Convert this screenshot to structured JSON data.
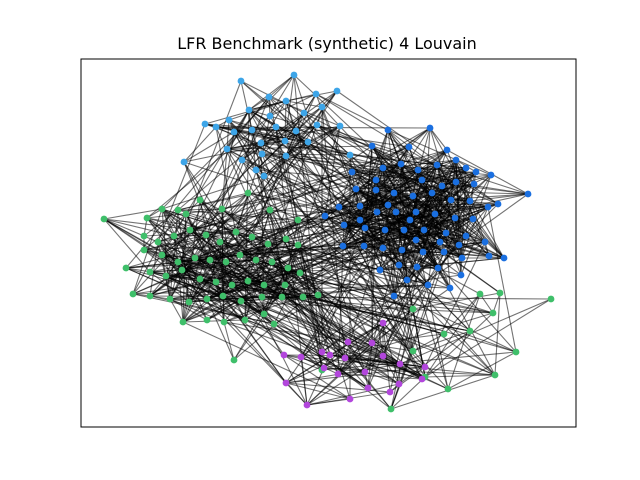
{
  "title": "LFR Benchmark (synthetic) 4 Louvain",
  "colors": {
    "community_light_blue": "#3da5e8",
    "community_blue": "#1a6fe0",
    "community_green": "#3fbf6a",
    "community_purple": "#b246dc",
    "edge": "#000000"
  },
  "chart_data": {
    "type": "network",
    "title": "LFR Benchmark (synthetic) 4 Louvain",
    "algorithm": "Louvain",
    "communities": [
      "light-blue",
      "blue",
      "green",
      "purple"
    ],
    "axes_visible": false
  }
}
